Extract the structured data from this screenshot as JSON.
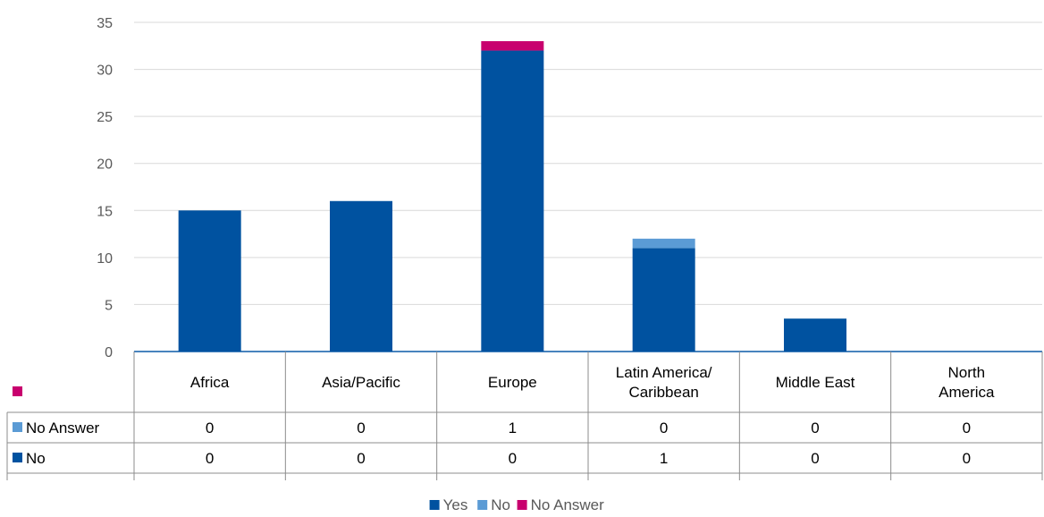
{
  "chart_data": {
    "type": "bar",
    "stacked": true,
    "title": "",
    "xlabel": "",
    "ylabel": "",
    "ylim": [
      0,
      35
    ],
    "yticks": [
      0,
      5,
      10,
      15,
      20,
      25,
      30,
      35
    ],
    "grid": true,
    "legend_position": "bottom",
    "categories": [
      "Africa",
      "Asia/Pacific",
      "Europe",
      "Latin America/ Caribbean",
      "Middle East",
      "North America"
    ],
    "series": [
      {
        "name": "Yes",
        "color": "#0052A0",
        "values": [
          15,
          16,
          32,
          11,
          3.5,
          0
        ]
      },
      {
        "name": "No",
        "color": "#5B9BD5",
        "values": [
          0,
          0,
          0,
          1,
          0,
          0
        ]
      },
      {
        "name": "No Answer",
        "color": "#C8006E",
        "values": [
          0,
          0,
          1,
          0,
          0,
          0
        ]
      }
    ],
    "data_table": {
      "rows": [
        {
          "label": "",
          "color": "#C8006E",
          "values": []
        },
        {
          "label": "No Answer",
          "color": "#5B9BD5",
          "values": [
            "0",
            "0",
            "1",
            "0",
            "0",
            "0"
          ]
        },
        {
          "label": "No",
          "color": "#0052A0",
          "values": [
            "0",
            "0",
            "0",
            "1",
            "0",
            "0"
          ]
        }
      ]
    }
  }
}
